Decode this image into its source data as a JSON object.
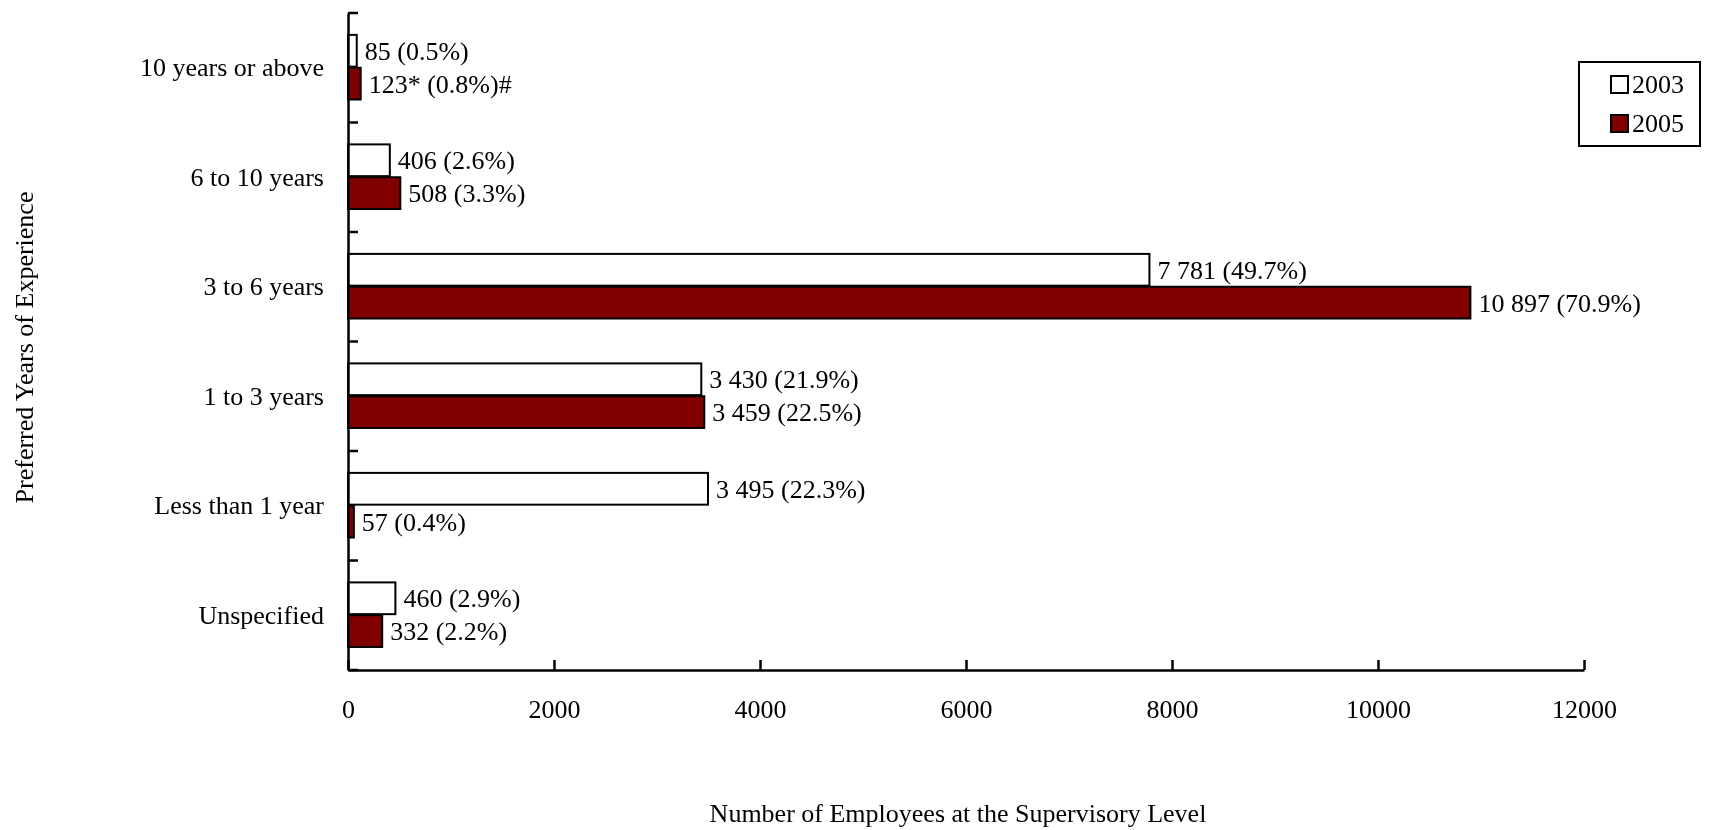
{
  "chart_data": {
    "type": "bar",
    "orientation": "horizontal",
    "xlabel": "Number of Employees at the Supervisory Level",
    "ylabel": "Preferred Years of Experience",
    "categories": [
      "10 years or above",
      "6 to 10 years",
      "3 to 6 years",
      "1 to 3 years",
      "Less than 1 year",
      "Unspecified"
    ],
    "series": [
      {
        "name": "2003",
        "color": "#ffffff",
        "values": [
          85,
          406,
          7781,
          3430,
          3495,
          460
        ],
        "value_labels": [
          "85 (0.5%)",
          "406 (2.6%)",
          "7 781 (49.7%)",
          "3 430 (21.9%)",
          "3 495 (22.3%)",
          "460 (2.9%)"
        ]
      },
      {
        "name": "2005",
        "color": "#800000",
        "values": [
          123,
          508,
          10897,
          3459,
          57,
          332
        ],
        "value_labels": [
          "123* (0.8%)#",
          "508 (3.3%)",
          "10 897 (70.9%)",
          "3 459 (22.5%)",
          "57 (0.4%)",
          "332 (2.2%)"
        ]
      }
    ],
    "xlim": [
      0,
      12000
    ],
    "xticks": [
      0,
      2000,
      4000,
      6000,
      8000,
      10000,
      12000
    ],
    "legend": "top right"
  }
}
